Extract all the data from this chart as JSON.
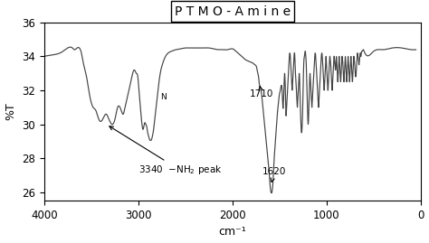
{
  "title": "P T M O - A m i n e",
  "xlabel": "cm⁻¹",
  "ylabel": "%T",
  "xlim": [
    4000,
    0
  ],
  "ylim": [
    25.5,
    36
  ],
  "yticks": [
    26,
    28,
    30,
    32,
    34,
    36
  ],
  "xticks": [
    4000,
    3000,
    2000,
    1000,
    0
  ],
  "bg_color": "#ffffff",
  "line_color": "#444444",
  "spectrum_pts": [
    [
      4000,
      34.0
    ],
    [
      3900,
      34.1
    ],
    [
      3800,
      34.3
    ],
    [
      3750,
      34.5
    ],
    [
      3720,
      34.55
    ],
    [
      3700,
      34.5
    ],
    [
      3680,
      34.4
    ],
    [
      3650,
      34.5
    ],
    [
      3620,
      34.45
    ],
    [
      3600,
      34.1
    ],
    [
      3580,
      33.5
    ],
    [
      3550,
      32.8
    ],
    [
      3520,
      31.8
    ],
    [
      3480,
      31.0
    ],
    [
      3450,
      30.8
    ],
    [
      3420,
      30.3
    ],
    [
      3390,
      30.2
    ],
    [
      3360,
      30.5
    ],
    [
      3340,
      30.6
    ],
    [
      3320,
      30.4
    ],
    [
      3300,
      30.15
    ],
    [
      3280,
      30.0
    ],
    [
      3260,
      30.1
    ],
    [
      3240,
      30.5
    ],
    [
      3220,
      31.0
    ],
    [
      3200,
      31.05
    ],
    [
      3180,
      30.8
    ],
    [
      3160,
      30.6
    ],
    [
      3140,
      31.0
    ],
    [
      3120,
      31.5
    ],
    [
      3100,
      32.0
    ],
    [
      3080,
      32.5
    ],
    [
      3060,
      33.0
    ],
    [
      3040,
      33.2
    ],
    [
      3020,
      33.0
    ],
    [
      3005,
      32.8
    ],
    [
      2990,
      31.8
    ],
    [
      2980,
      31.2
    ],
    [
      2970,
      30.5
    ],
    [
      2960,
      29.95
    ],
    [
      2950,
      29.7
    ],
    [
      2940,
      29.9
    ],
    [
      2930,
      30.1
    ],
    [
      2920,
      30.0
    ],
    [
      2910,
      29.85
    ],
    [
      2900,
      29.5
    ],
    [
      2890,
      29.3
    ],
    [
      2880,
      29.1
    ],
    [
      2870,
      29.05
    ],
    [
      2860,
      29.1
    ],
    [
      2850,
      29.3
    ],
    [
      2840,
      29.6
    ],
    [
      2820,
      30.5
    ],
    [
      2800,
      31.5
    ],
    [
      2780,
      32.5
    ],
    [
      2760,
      33.2
    ],
    [
      2740,
      33.6
    ],
    [
      2720,
      33.9
    ],
    [
      2700,
      34.1
    ],
    [
      2650,
      34.3
    ],
    [
      2600,
      34.4
    ],
    [
      2550,
      34.45
    ],
    [
      2500,
      34.5
    ],
    [
      2450,
      34.5
    ],
    [
      2400,
      34.5
    ],
    [
      2350,
      34.5
    ],
    [
      2300,
      34.5
    ],
    [
      2250,
      34.5
    ],
    [
      2200,
      34.45
    ],
    [
      2150,
      34.4
    ],
    [
      2100,
      34.4
    ],
    [
      2050,
      34.4
    ],
    [
      2000,
      34.45
    ],
    [
      1980,
      34.4
    ],
    [
      1960,
      34.3
    ],
    [
      1940,
      34.2
    ],
    [
      1920,
      34.1
    ],
    [
      1900,
      34.0
    ],
    [
      1880,
      33.9
    ],
    [
      1860,
      33.8
    ],
    [
      1840,
      33.75
    ],
    [
      1820,
      33.7
    ],
    [
      1800,
      33.65
    ],
    [
      1780,
      33.6
    ],
    [
      1760,
      33.5
    ],
    [
      1740,
      33.3
    ],
    [
      1730,
      33.0
    ],
    [
      1720,
      32.7
    ],
    [
      1715,
      32.4
    ],
    [
      1710,
      32.3
    ],
    [
      1705,
      32.2
    ],
    [
      1700,
      32.1
    ],
    [
      1690,
      31.8
    ],
    [
      1680,
      31.3
    ],
    [
      1670,
      30.7
    ],
    [
      1660,
      30.1
    ],
    [
      1650,
      29.5
    ],
    [
      1640,
      29.0
    ],
    [
      1635,
      28.7
    ],
    [
      1630,
      28.4
    ],
    [
      1625,
      28.1
    ],
    [
      1620,
      27.8
    ],
    [
      1615,
      27.5
    ],
    [
      1610,
      27.2
    ],
    [
      1605,
      26.8
    ],
    [
      1600,
      26.4
    ],
    [
      1595,
      26.15
    ],
    [
      1590,
      26.0
    ],
    [
      1585,
      25.95
    ],
    [
      1580,
      26.0
    ],
    [
      1575,
      26.2
    ],
    [
      1570,
      26.5
    ],
    [
      1565,
      27.0
    ],
    [
      1560,
      27.6
    ],
    [
      1550,
      28.5
    ],
    [
      1540,
      29.3
    ],
    [
      1530,
      30.0
    ],
    [
      1520,
      30.8
    ],
    [
      1510,
      31.3
    ],
    [
      1500,
      31.8
    ],
    [
      1490,
      32.0
    ],
    [
      1480,
      32.3
    ],
    [
      1470,
      31.8
    ],
    [
      1460,
      31.0
    ],
    [
      1455,
      31.8
    ],
    [
      1450,
      32.5
    ],
    [
      1445,
      33.0
    ],
    [
      1440,
      32.5
    ],
    [
      1435,
      31.5
    ],
    [
      1430,
      30.5
    ],
    [
      1425,
      31.0
    ],
    [
      1420,
      31.5
    ],
    [
      1415,
      32.0
    ],
    [
      1410,
      32.5
    ],
    [
      1405,
      33.0
    ],
    [
      1400,
      33.5
    ],
    [
      1395,
      34.0
    ],
    [
      1390,
      34.2
    ],
    [
      1385,
      34.0
    ],
    [
      1380,
      33.5
    ],
    [
      1375,
      33.0
    ],
    [
      1370,
      32.5
    ],
    [
      1365,
      32.0
    ],
    [
      1360,
      32.5
    ],
    [
      1355,
      33.0
    ],
    [
      1350,
      33.5
    ],
    [
      1345,
      34.0
    ],
    [
      1340,
      34.2
    ],
    [
      1335,
      33.8
    ],
    [
      1330,
      33.0
    ],
    [
      1325,
      32.5
    ],
    [
      1320,
      32.0
    ],
    [
      1315,
      31.5
    ],
    [
      1310,
      31.0
    ],
    [
      1305,
      31.5
    ],
    [
      1300,
      32.0
    ],
    [
      1295,
      32.5
    ],
    [
      1290,
      33.0
    ],
    [
      1285,
      32.5
    ],
    [
      1280,
      31.5
    ],
    [
      1275,
      30.5
    ],
    [
      1270,
      29.8
    ],
    [
      1265,
      29.5
    ],
    [
      1260,
      29.8
    ],
    [
      1255,
      30.5
    ],
    [
      1250,
      31.5
    ],
    [
      1245,
      33.0
    ],
    [
      1240,
      33.8
    ],
    [
      1235,
      34.0
    ],
    [
      1230,
      34.2
    ],
    [
      1225,
      34.3
    ],
    [
      1220,
      34.0
    ],
    [
      1215,
      33.5
    ],
    [
      1210,
      32.5
    ],
    [
      1205,
      31.5
    ],
    [
      1200,
      30.5
    ],
    [
      1195,
      30.0
    ],
    [
      1190,
      30.5
    ],
    [
      1185,
      31.5
    ],
    [
      1180,
      32.5
    ],
    [
      1175,
      33.0
    ],
    [
      1170,
      32.5
    ],
    [
      1165,
      32.0
    ],
    [
      1160,
      31.5
    ],
    [
      1155,
      31.0
    ],
    [
      1150,
      31.5
    ],
    [
      1145,
      32.0
    ],
    [
      1140,
      32.5
    ],
    [
      1135,
      33.0
    ],
    [
      1130,
      33.5
    ],
    [
      1125,
      34.0
    ],
    [
      1120,
      34.2
    ],
    [
      1115,
      34.0
    ],
    [
      1110,
      33.5
    ],
    [
      1105,
      33.0
    ],
    [
      1100,
      32.5
    ],
    [
      1095,
      32.0
    ],
    [
      1090,
      31.5
    ],
    [
      1085,
      31.0
    ],
    [
      1080,
      31.5
    ],
    [
      1075,
      32.0
    ],
    [
      1070,
      32.5
    ],
    [
      1065,
      33.0
    ],
    [
      1060,
      33.5
    ],
    [
      1055,
      34.0
    ],
    [
      1050,
      34.2
    ],
    [
      1045,
      34.0
    ],
    [
      1040,
      33.5
    ],
    [
      1035,
      33.0
    ],
    [
      1030,
      32.5
    ],
    [
      1025,
      32.0
    ],
    [
      1020,
      32.5
    ],
    [
      1015,
      33.0
    ],
    [
      1010,
      33.5
    ],
    [
      1005,
      34.0
    ],
    [
      1000,
      33.5
    ],
    [
      995,
      33.0
    ],
    [
      990,
      32.5
    ],
    [
      985,
      32.0
    ],
    [
      980,
      32.5
    ],
    [
      975,
      33.0
    ],
    [
      970,
      33.5
    ],
    [
      965,
      34.0
    ],
    [
      960,
      33.8
    ],
    [
      955,
      33.5
    ],
    [
      950,
      33.0
    ],
    [
      945,
      32.5
    ],
    [
      940,
      32.0
    ],
    [
      935,
      32.5
    ],
    [
      930,
      33.0
    ],
    [
      925,
      33.5
    ],
    [
      920,
      34.0
    ],
    [
      915,
      33.8
    ],
    [
      910,
      33.5
    ],
    [
      905,
      33.2
    ],
    [
      900,
      33.5
    ],
    [
      895,
      34.0
    ],
    [
      890,
      33.5
    ],
    [
      885,
      33.0
    ],
    [
      880,
      32.5
    ],
    [
      875,
      33.0
    ],
    [
      870,
      33.5
    ],
    [
      865,
      34.0
    ],
    [
      860,
      33.5
    ],
    [
      855,
      33.0
    ],
    [
      850,
      32.5
    ],
    [
      845,
      33.0
    ],
    [
      840,
      33.5
    ],
    [
      835,
      34.0
    ],
    [
      830,
      33.8
    ],
    [
      825,
      33.5
    ],
    [
      820,
      33.0
    ],
    [
      815,
      32.5
    ],
    [
      810,
      33.0
    ],
    [
      805,
      33.5
    ],
    [
      800,
      34.0
    ],
    [
      795,
      33.5
    ],
    [
      790,
      33.0
    ],
    [
      785,
      32.5
    ],
    [
      780,
      33.0
    ],
    [
      775,
      33.5
    ],
    [
      770,
      34.0
    ],
    [
      765,
      33.5
    ],
    [
      760,
      33.0
    ],
    [
      755,
      32.5
    ],
    [
      750,
      33.0
    ],
    [
      745,
      33.5
    ],
    [
      740,
      34.0
    ],
    [
      735,
      33.5
    ],
    [
      730,
      33.0
    ],
    [
      725,
      32.5
    ],
    [
      720,
      33.0
    ],
    [
      715,
      33.5
    ],
    [
      710,
      34.0
    ],
    [
      705,
      33.8
    ],
    [
      700,
      33.5
    ],
    [
      695,
      33.0
    ],
    [
      690,
      32.8
    ],
    [
      685,
      33.0
    ],
    [
      680,
      33.5
    ],
    [
      675,
      34.0
    ],
    [
      670,
      34.2
    ],
    [
      665,
      34.0
    ],
    [
      660,
      33.8
    ],
    [
      655,
      33.5
    ],
    [
      650,
      33.8
    ],
    [
      645,
      34.0
    ],
    [
      640,
      34.2
    ],
    [
      635,
      34.0
    ],
    [
      630,
      34.2
    ],
    [
      620,
      34.3
    ],
    [
      610,
      34.4
    ],
    [
      600,
      34.3
    ],
    [
      500,
      34.3
    ],
    [
      400,
      34.4
    ],
    [
      300,
      34.5
    ],
    [
      200,
      34.5
    ],
    [
      100,
      34.4
    ],
    [
      50,
      34.4
    ]
  ]
}
